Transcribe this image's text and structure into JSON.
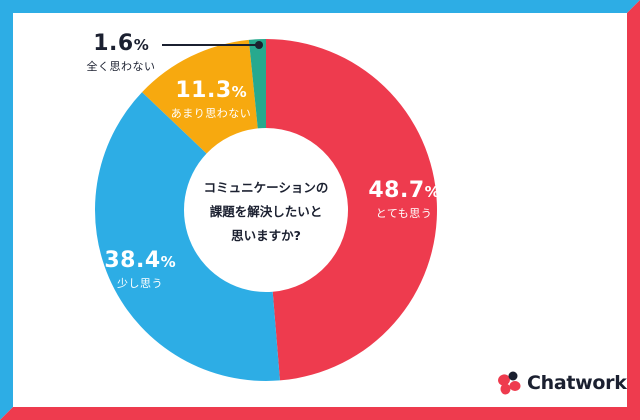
{
  "colors": {
    "frame_top_left": "#2DADE5",
    "frame_bottom_right": "#EE3B4E",
    "background": "#FFFFFF",
    "text_dark": "#1B2030"
  },
  "chart_data": {
    "type": "pie",
    "variant": "donut",
    "title": "コミュニケーションの課題を解決したいと思いますか?",
    "start_angle": "12 o'clock, clockwise",
    "categories": [
      "とても思う",
      "少し思う",
      "あまり思わない",
      "全く思わない"
    ],
    "values": [
      48.7,
      38.4,
      11.3,
      1.6
    ],
    "unit": "%",
    "series_colors": [
      "#EE3B4E",
      "#2DADE5",
      "#F7A90F",
      "#27A98E"
    ],
    "labels": [
      {
        "value": "48.7",
        "sign": "%",
        "text": "とても思う"
      },
      {
        "value": "38.4",
        "sign": "%",
        "text": "少し思う"
      },
      {
        "value": "11.3",
        "sign": "%",
        "text": "あまり思わない"
      },
      {
        "value": "1.6",
        "sign": "%",
        "text": "全く思わない"
      }
    ]
  },
  "center_text": {
    "line1": "コミュニケーションの",
    "line2": "課題を解決したいと",
    "line3": "思いますか?"
  },
  "logo": {
    "name": "Chatwork",
    "icon": "chatwork-flower-icon",
    "petal_color": "#EE3B4E",
    "accent_petal_color": "#1B2030"
  }
}
